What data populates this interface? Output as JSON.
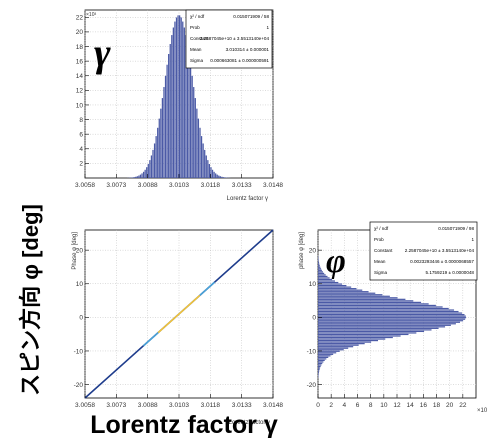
{
  "figure": {
    "left_label": "スピン方向 φ [deg]",
    "bottom_label": "Lorentz factor γ"
  },
  "chart_data": [
    {
      "id": "gamma-hist",
      "type": "bar",
      "big_symbol": "γ",
      "xlabel": "Lorentz factor γ",
      "ylabel": "",
      "exponent": "×10³",
      "xlim": [
        3.0058,
        3.0148
      ],
      "ylim": [
        0,
        23
      ],
      "xticks": [
        "3.0058",
        "3.0073",
        "3.0088",
        "3.0103",
        "3.0118",
        "3.0133",
        "3.0148"
      ],
      "yticks": [
        2,
        4,
        6,
        8,
        10,
        12,
        14,
        16,
        18,
        20,
        22
      ],
      "fill_color": "#4b5aa6",
      "gaussian": {
        "mean": 3.0103,
        "sigma": 0.00066,
        "peak": 22.3
      },
      "stats": [
        {
          "label": "χ² / ndf",
          "value": "0.015071909 / 58"
        },
        {
          "label": "Prob",
          "value": "1"
        },
        {
          "label": "Constant",
          "value": "2.2587045e+10 ± 3.5513140e+04"
        },
        {
          "label": "Mean",
          "value": "3.010314 ± 0.000001"
        },
        {
          "label": "Sigma",
          "value": "0.000663081 ± 0.000000591"
        }
      ]
    },
    {
      "id": "phi-vs-gamma",
      "type": "scatter",
      "xlabel": "Lorentz factor γ",
      "ylabel": "Phase φ [deg]",
      "xlim": [
        3.0058,
        3.0148
      ],
      "ylim": [
        -24,
        26
      ],
      "xticks": [
        "3.0058",
        "3.0073",
        "3.0088",
        "3.0103",
        "3.0118",
        "3.0133",
        "3.0148"
      ],
      "yticks": [
        -20,
        -10,
        0,
        10,
        20
      ],
      "line": {
        "x": [
          3.0058,
          3.0148
        ],
        "y": [
          -24,
          26
        ]
      },
      "line_color": "#1e3c8c",
      "highlight_color": "#f2c438"
    },
    {
      "id": "phi-hist",
      "type": "bar",
      "orientation": "horizontal",
      "big_symbol": "φ",
      "xlabel": "",
      "ylabel": "phase φ [deg]",
      "exponent": "×10",
      "xlim": [
        0,
        24
      ],
      "ylim": [
        -24,
        26
      ],
      "xticks": [
        0,
        2,
        4,
        6,
        8,
        10,
        12,
        14,
        16,
        18,
        20,
        22
      ],
      "yticks": [
        -20,
        -10,
        0,
        10,
        20
      ],
      "fill_color": "#4b5aa6",
      "gaussian": {
        "mean": 0.0023,
        "sigma": 5.176,
        "peak": 22.5
      },
      "stats": [
        {
          "label": "χ² / ndf",
          "value": "0.015071909 / 98"
        },
        {
          "label": "Prob",
          "value": "1"
        },
        {
          "label": "Constant",
          "value": "2.2587045e+10 ± 3.5513140e+04"
        },
        {
          "label": "Mean",
          "value": "0.0023293446 ± 0.0000068557"
        },
        {
          "label": "Sigma",
          "value": "5.1759219 ± 0.0000048"
        }
      ]
    }
  ]
}
